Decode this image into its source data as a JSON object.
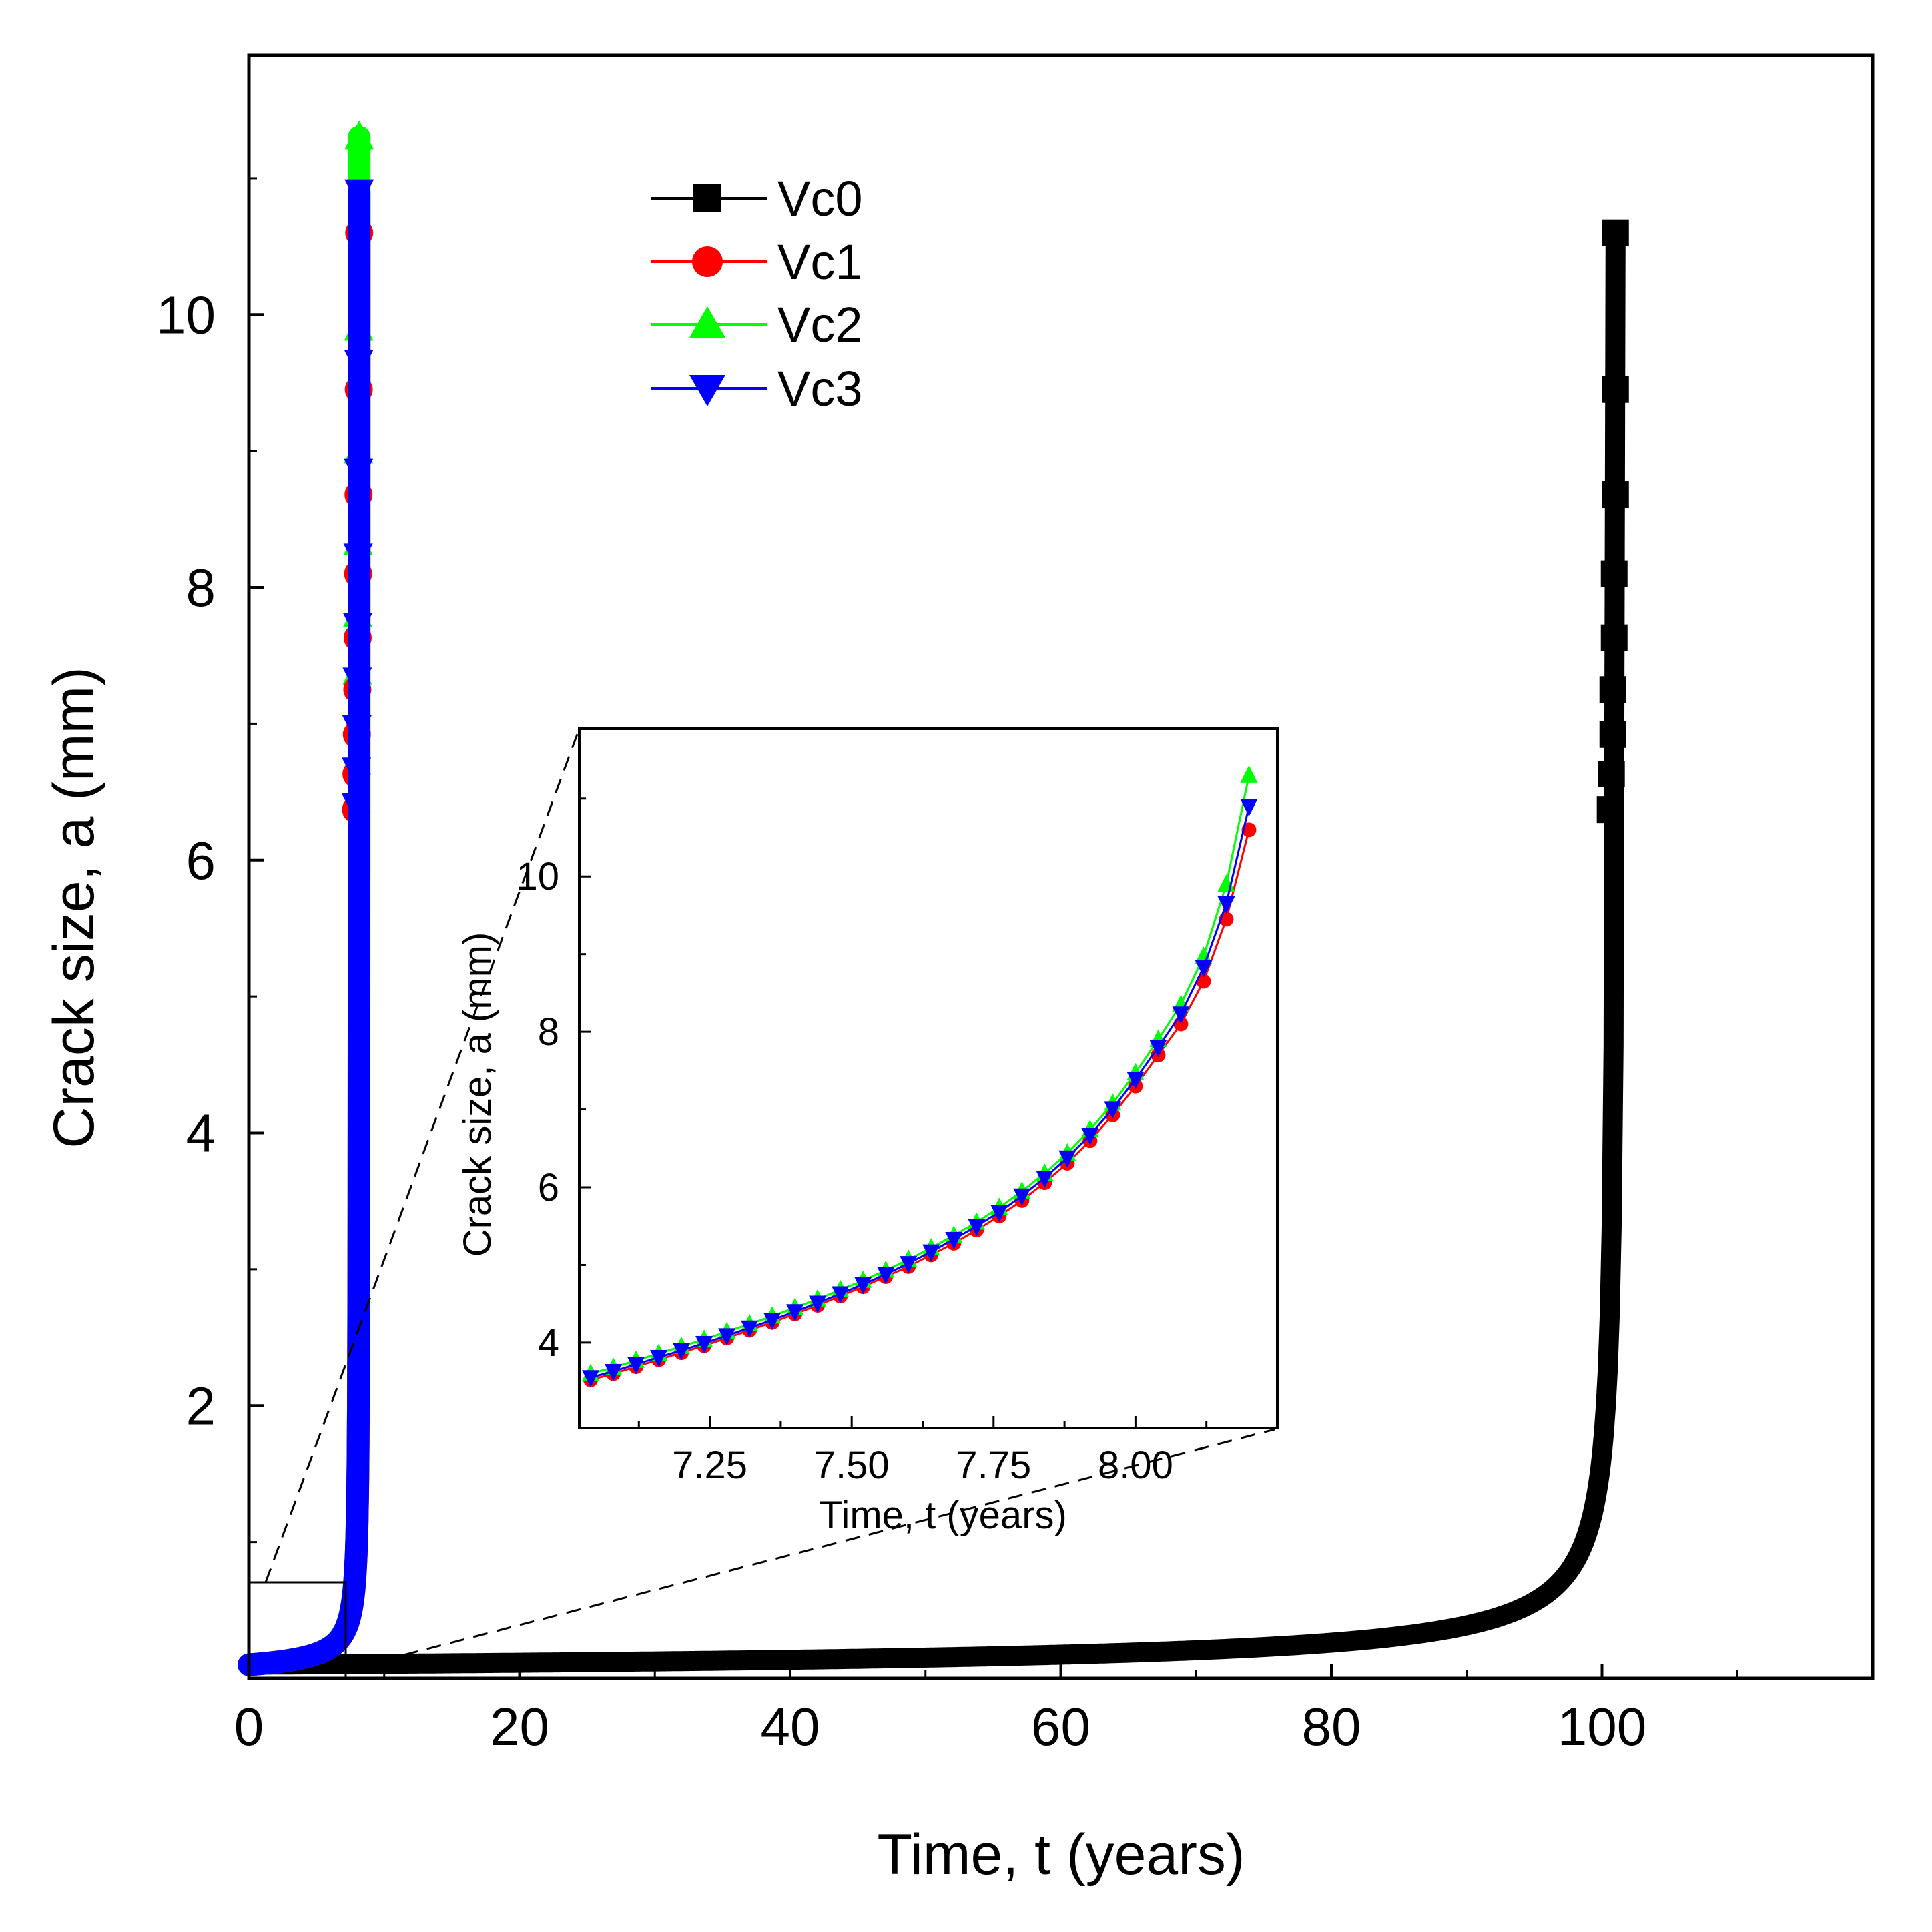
{
  "chart_data": [
    {
      "id": "main",
      "type": "line",
      "xlabel": "Time, t (years)",
      "ylabel": "Crack size, a (mm)",
      "xlim": [
        0,
        120
      ],
      "ylim": [
        0,
        11.9
      ],
      "xticks": [
        0,
        20,
        40,
        60,
        80,
        100
      ],
      "xtick_labels": [
        "0",
        "20",
        "40",
        "60",
        "80",
        "100"
      ],
      "yticks": [
        2,
        4,
        6,
        8,
        10
      ],
      "ytick_labels": [
        "2",
        "4",
        "6",
        "8",
        "10"
      ],
      "legend_position": "top-left",
      "series": [
        {
          "name": "Vc0",
          "color": "#000000",
          "marker": "square",
          "t_end": 101.0,
          "a0": 0.1,
          "a_end": 10.6,
          "sparse_points": [
            [
              101.0,
              10.6
            ],
            [
              101.0,
              9.45
            ],
            [
              101.0,
              8.68
            ],
            [
              100.9,
              8.1
            ],
            [
              100.9,
              7.63
            ],
            [
              100.8,
              7.25
            ],
            [
              100.8,
              6.92
            ],
            [
              100.7,
              6.63
            ],
            [
              100.6,
              6.37
            ]
          ]
        },
        {
          "name": "Vc1",
          "color": "#ff0000",
          "marker": "circle",
          "t_end": 8.15,
          "a0": 0.1,
          "a_end": 10.6,
          "sparse_points": [
            [
              8.15,
              10.6
            ],
            [
              8.12,
              9.45
            ],
            [
              8.1,
              8.68
            ],
            [
              8.07,
              8.1
            ],
            [
              8.04,
              7.63
            ],
            [
              8.01,
              7.25
            ],
            [
              7.98,
              6.92
            ],
            [
              7.95,
              6.63
            ],
            [
              7.92,
              6.37
            ]
          ]
        },
        {
          "name": "Vc2",
          "color": "#00ff00",
          "marker": "triangle-up",
          "t_end": 8.15,
          "a0": 0.1,
          "a_end": 11.3,
          "sparse_points": [
            [
              8.15,
              11.3
            ],
            [
              8.12,
              9.9
            ],
            [
              8.1,
              9.0
            ],
            [
              8.07,
              8.33
            ],
            [
              8.04,
              7.8
            ],
            [
              8.01,
              7.38
            ],
            [
              7.98,
              7.02
            ],
            [
              7.95,
              6.72
            ],
            [
              7.92,
              6.45
            ]
          ]
        },
        {
          "name": "Vc3",
          "color": "#0000ff",
          "marker": "triangle-down",
          "t_end": 8.15,
          "a0": 0.1,
          "a_end": 10.9,
          "sparse_points": [
            [
              8.15,
              10.9
            ],
            [
              8.12,
              9.65
            ],
            [
              8.1,
              8.85
            ],
            [
              8.07,
              8.23
            ],
            [
              8.04,
              7.72
            ],
            [
              8.01,
              7.32
            ],
            [
              7.98,
              6.97
            ],
            [
              7.95,
              6.66
            ],
            [
              7.92,
              6.4
            ]
          ]
        }
      ],
      "zoom_box": {
        "x": [
          0,
          7
        ],
        "y": [
          0,
          0.72
        ]
      }
    },
    {
      "id": "inset",
      "type": "line",
      "xlabel": "Time, t (years)",
      "ylabel": "Crack size, a (mm)",
      "xlim": [
        7.02,
        8.25
      ],
      "ylim": [
        2.9,
        11.9
      ],
      "xticks": [
        7.25,
        7.5,
        7.75,
        8.0
      ],
      "xtick_labels": [
        "7.25",
        "7.50",
        "7.75",
        "8.00"
      ],
      "yticks": [
        4,
        6,
        8,
        10
      ],
      "ytick_labels": [
        "4",
        "6",
        "8",
        "10"
      ],
      "series": [
        {
          "name": "Vc1",
          "color": "#ff0000",
          "marker": "circle",
          "points": [
            [
              7.04,
              3.52
            ],
            [
              7.08,
              3.6
            ],
            [
              7.12,
              3.69
            ],
            [
              7.16,
              3.78
            ],
            [
              7.2,
              3.87
            ],
            [
              7.24,
              3.96
            ],
            [
              7.28,
              4.06
            ],
            [
              7.32,
              4.16
            ],
            [
              7.36,
              4.26
            ],
            [
              7.4,
              4.37
            ],
            [
              7.44,
              4.48
            ],
            [
              7.48,
              4.6
            ],
            [
              7.52,
              4.72
            ],
            [
              7.56,
              4.85
            ],
            [
              7.6,
              4.98
            ],
            [
              7.64,
              5.13
            ],
            [
              7.68,
              5.28
            ],
            [
              7.72,
              5.45
            ],
            [
              7.76,
              5.63
            ],
            [
              7.8,
              5.83
            ],
            [
              7.84,
              6.06
            ],
            [
              7.88,
              6.31
            ],
            [
              7.92,
              6.6
            ],
            [
              7.96,
              6.93
            ],
            [
              8.0,
              7.3
            ],
            [
              8.04,
              7.7
            ],
            [
              8.08,
              8.1
            ],
            [
              8.12,
              8.65
            ],
            [
              8.16,
              9.45
            ],
            [
              8.2,
              10.6
            ]
          ]
        },
        {
          "name": "Vc2",
          "color": "#00ff00",
          "marker": "triangle-up",
          "points": [
            [
              7.04,
              3.6
            ],
            [
              7.08,
              3.68
            ],
            [
              7.12,
              3.77
            ],
            [
              7.16,
              3.86
            ],
            [
              7.2,
              3.95
            ],
            [
              7.24,
              4.04
            ],
            [
              7.28,
              4.14
            ],
            [
              7.32,
              4.24
            ],
            [
              7.36,
              4.34
            ],
            [
              7.4,
              4.45
            ],
            [
              7.44,
              4.56
            ],
            [
              7.48,
              4.68
            ],
            [
              7.52,
              4.8
            ],
            [
              7.56,
              4.93
            ],
            [
              7.6,
              5.07
            ],
            [
              7.64,
              5.22
            ],
            [
              7.68,
              5.38
            ],
            [
              7.72,
              5.55
            ],
            [
              7.76,
              5.74
            ],
            [
              7.8,
              5.95
            ],
            [
              7.84,
              6.18
            ],
            [
              7.88,
              6.44
            ],
            [
              7.92,
              6.74
            ],
            [
              7.96,
              7.08
            ],
            [
              8.0,
              7.47
            ],
            [
              8.04,
              7.9
            ],
            [
              8.08,
              8.35
            ],
            [
              8.12,
              8.97
            ],
            [
              8.16,
              9.9
            ],
            [
              8.2,
              11.3
            ]
          ]
        },
        {
          "name": "Vc3",
          "color": "#0000ff",
          "marker": "triangle-down",
          "points": [
            [
              7.04,
              3.55
            ],
            [
              7.08,
              3.63
            ],
            [
              7.12,
              3.72
            ],
            [
              7.16,
              3.81
            ],
            [
              7.2,
              3.9
            ],
            [
              7.24,
              3.99
            ],
            [
              7.28,
              4.09
            ],
            [
              7.32,
              4.19
            ],
            [
              7.36,
              4.29
            ],
            [
              7.4,
              4.4
            ],
            [
              7.44,
              4.51
            ],
            [
              7.48,
              4.63
            ],
            [
              7.52,
              4.75
            ],
            [
              7.56,
              4.88
            ],
            [
              7.6,
              5.02
            ],
            [
              7.64,
              5.17
            ],
            [
              7.68,
              5.33
            ],
            [
              7.72,
              5.5
            ],
            [
              7.76,
              5.68
            ],
            [
              7.8,
              5.89
            ],
            [
              7.84,
              6.12
            ],
            [
              7.88,
              6.38
            ],
            [
              7.92,
              6.67
            ],
            [
              7.96,
              7.01
            ],
            [
              8.0,
              7.39
            ],
            [
              8.04,
              7.8
            ],
            [
              8.08,
              8.23
            ],
            [
              8.12,
              8.83
            ],
            [
              8.16,
              9.65
            ],
            [
              8.2,
              10.9
            ]
          ]
        }
      ]
    }
  ]
}
